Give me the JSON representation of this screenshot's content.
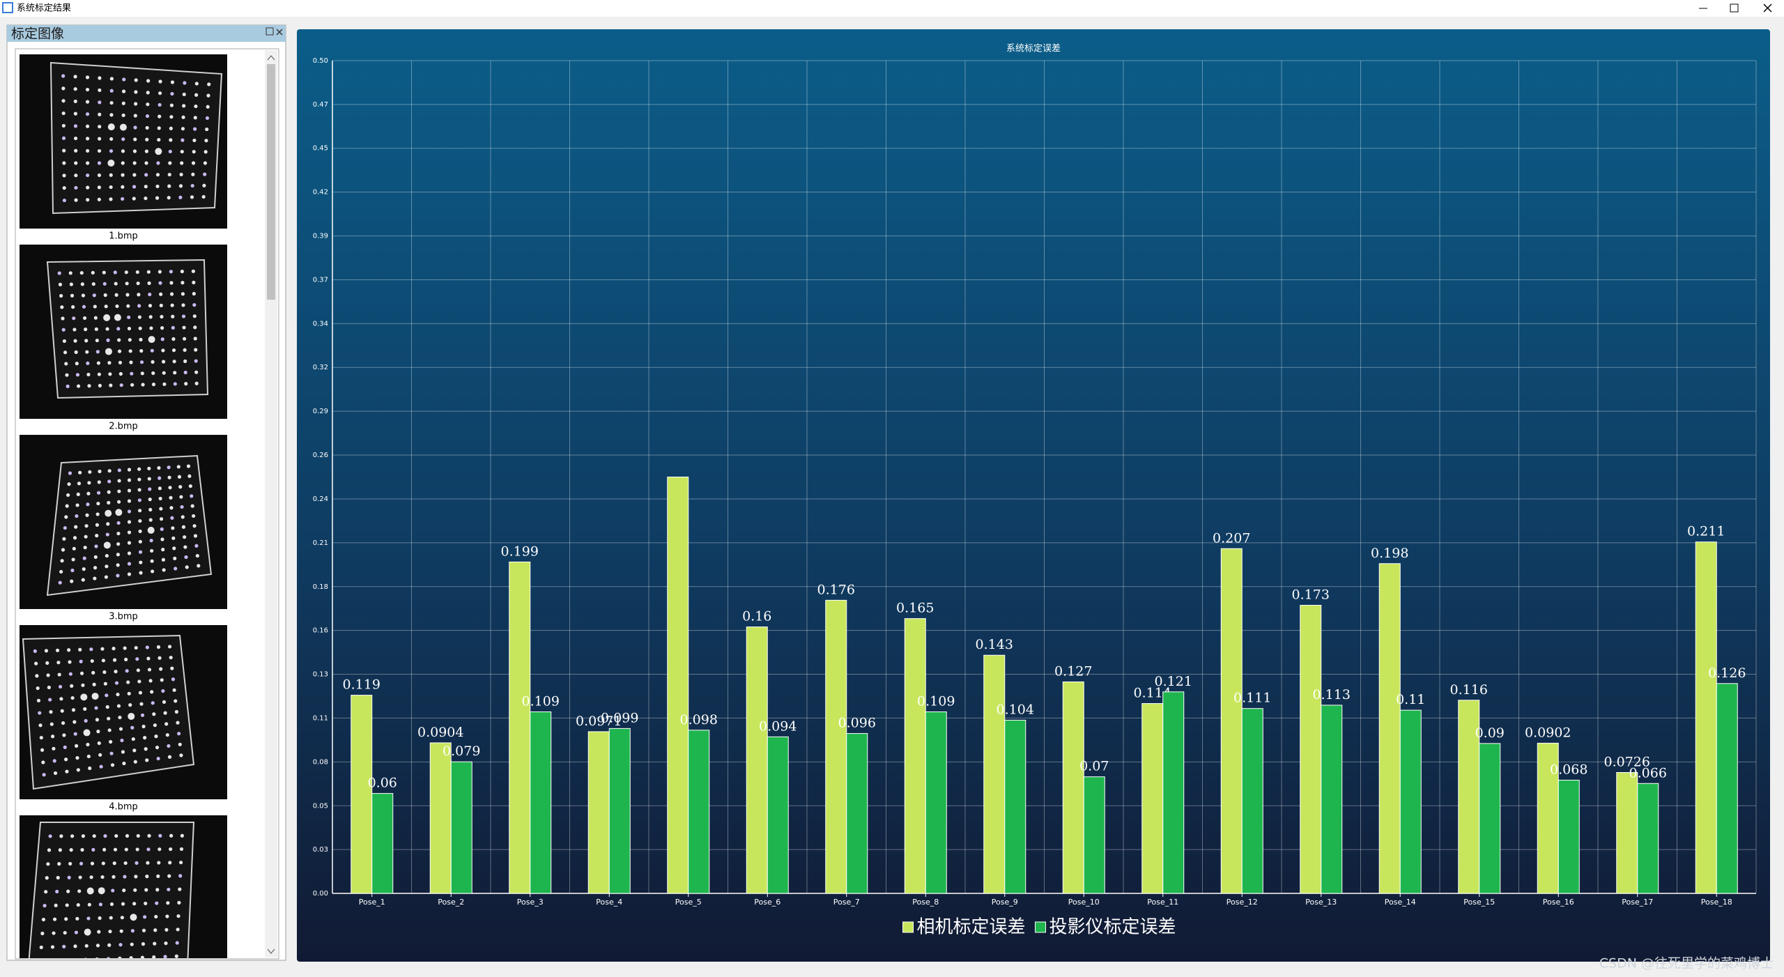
{
  "window": {
    "title": "系统标定结果"
  },
  "left_panel": {
    "title": "标定图像",
    "images": [
      "1.bmp",
      "2.bmp",
      "3.bmp",
      "4.bmp"
    ]
  },
  "watermark": "CSDN @往死里学的菜鸡博士",
  "chart_data": {
    "type": "bar",
    "title": "系统标定误差",
    "categories": [
      "Pose_1",
      "Pose_2",
      "Pose_3",
      "Pose_4",
      "Pose_5",
      "Pose_6",
      "Pose_7",
      "Pose_8",
      "Pose_9",
      "Pose_10",
      "Pose_11",
      "Pose_12",
      "Pose_13",
      "Pose_14",
      "Pose_15",
      "Pose_16",
      "Pose_17",
      "Pose_18"
    ],
    "series": [
      {
        "name": "相机标定误差",
        "color": "#c8e65c",
        "values": [
          0.119,
          0.0904,
          0.199,
          0.0971,
          0.25,
          0.16,
          0.176,
          0.165,
          0.143,
          0.127,
          0.114,
          0.207,
          0.173,
          0.198,
          0.116,
          0.0902,
          0.0726,
          0.211
        ],
        "value_labels": [
          "0.119",
          "0.0904",
          "0.199",
          "0.0971",
          null,
          "0.16",
          "0.176",
          "0.165",
          "0.143",
          "0.127",
          "0.114",
          "0.207",
          "0.173",
          "0.198",
          "0.116",
          "0.0902",
          "0.0726",
          "0.211"
        ]
      },
      {
        "name": "投影仪标定误差",
        "color": "#1fb54e",
        "values": [
          0.06,
          0.079,
          0.109,
          0.099,
          0.098,
          0.094,
          0.096,
          0.109,
          0.104,
          0.07,
          0.121,
          0.111,
          0.113,
          0.11,
          0.09,
          0.068,
          0.066,
          0.126
        ]
      }
    ],
    "ylim": [
      0,
      0.5
    ],
    "yticks": [
      {
        "value": 0,
        "label": "0.00"
      },
      {
        "value": 0.0263,
        "label": "0.03"
      },
      {
        "value": 0.0526,
        "label": "0.05"
      },
      {
        "value": 0.0789,
        "label": "0.08"
      },
      {
        "value": 0.1053,
        "label": "0.11"
      },
      {
        "value": 0.1316,
        "label": "0.13"
      },
      {
        "value": 0.1579,
        "label": "0.16"
      },
      {
        "value": 0.1842,
        "label": "0.18"
      },
      {
        "value": 0.2105,
        "label": "0.21"
      },
      {
        "value": 0.2368,
        "label": "0.24"
      },
      {
        "value": 0.2632,
        "label": "0.26"
      },
      {
        "value": 0.2895,
        "label": "0.29"
      },
      {
        "value": 0.3158,
        "label": "0.32"
      },
      {
        "value": 0.3421,
        "label": "0.34"
      },
      {
        "value": 0.3684,
        "label": "0.37"
      },
      {
        "value": 0.3947,
        "label": "0.39"
      },
      {
        "value": 0.4211,
        "label": "0.42"
      },
      {
        "value": 0.4474,
        "label": "0.45"
      },
      {
        "value": 0.4737,
        "label": "0.47"
      },
      {
        "value": 0.5,
        "label": "0.50"
      }
    ],
    "grid": true,
    "legend": "bottom"
  }
}
